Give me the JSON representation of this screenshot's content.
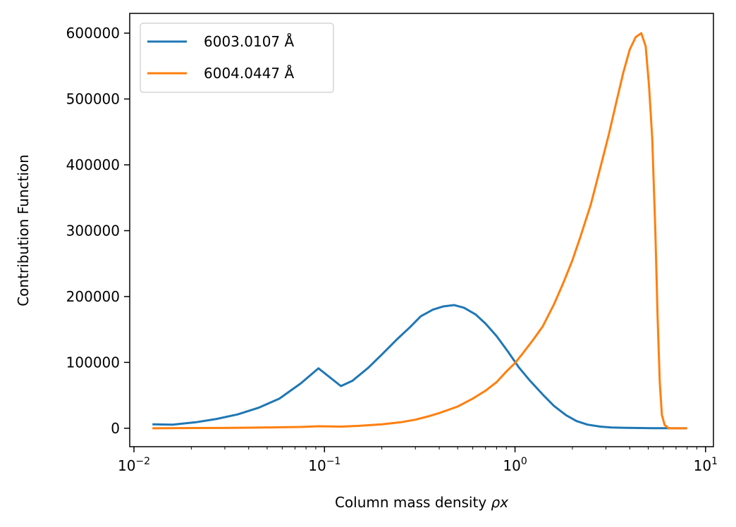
{
  "chart_data": {
    "type": "line",
    "xscale": "log",
    "xlim": [
      0.0095,
      11
    ],
    "ylim": [
      -28000,
      630000
    ],
    "xlabel": "Column mass density",
    "xlabel_symbol": "ρx",
    "ylabel": "Contribution Function",
    "grid": false,
    "legend_position": "upper-left",
    "x_ticks": [
      {
        "value": 0.01,
        "base": "10",
        "exp": "−2"
      },
      {
        "value": 0.1,
        "base": "10",
        "exp": "−1"
      },
      {
        "value": 1,
        "base": "10",
        "exp": "0"
      },
      {
        "value": 10,
        "base": "10",
        "exp": "1"
      }
    ],
    "y_ticks": [
      {
        "value": 0,
        "label": "0"
      },
      {
        "value": 100000,
        "label": "100000"
      },
      {
        "value": 200000,
        "label": "200000"
      },
      {
        "value": 300000,
        "label": "300000"
      },
      {
        "value": 400000,
        "label": "400000"
      },
      {
        "value": 500000,
        "label": "500000"
      },
      {
        "value": 600000,
        "label": "600000"
      }
    ],
    "series": [
      {
        "name": "6003.0107 Å",
        "color": "#1f77b4",
        "x": [
          0.0125,
          0.016,
          0.021,
          0.027,
          0.035,
          0.045,
          0.058,
          0.075,
          0.093,
          0.122,
          0.14,
          0.17,
          0.2,
          0.24,
          0.28,
          0.32,
          0.37,
          0.42,
          0.48,
          0.54,
          0.62,
          0.7,
          0.8,
          0.92,
          1.05,
          1.2,
          1.4,
          1.6,
          1.85,
          2.1,
          2.4,
          2.8,
          3.2,
          3.8,
          4.5,
          5.3,
          6.2,
          7.0,
          8.0
        ],
        "y": [
          6000,
          5500,
          9000,
          14000,
          21000,
          31000,
          45000,
          68000,
          91000,
          64000,
          72000,
          92000,
          112000,
          135000,
          153000,
          170000,
          180000,
          185000,
          187000,
          183000,
          173000,
          159000,
          140000,
          116000,
          92000,
          72000,
          51000,
          34000,
          20000,
          11000,
          5500,
          2500,
          1200,
          600,
          300,
          100,
          50,
          0,
          0
        ]
      },
      {
        "name": "6004.0447 Å",
        "color": "#ff7f0e",
        "x": [
          0.0125,
          0.02,
          0.03,
          0.045,
          0.06,
          0.075,
          0.093,
          0.122,
          0.15,
          0.2,
          0.25,
          0.3,
          0.35,
          0.4,
          0.5,
          0.6,
          0.7,
          0.8,
          0.9,
          1.0,
          1.1,
          1.25,
          1.4,
          1.6,
          1.8,
          2.0,
          2.2,
          2.5,
          2.8,
          3.1,
          3.4,
          3.7,
          4.0,
          4.3,
          4.6,
          4.85,
          5.05,
          5.25,
          5.45,
          5.6,
          5.75,
          5.9,
          6.1,
          6.4,
          7.0,
          8.0
        ],
        "y": [
          0,
          300,
          500,
          1000,
          1500,
          2000,
          3000,
          2500,
          3500,
          6000,
          9000,
          13000,
          18000,
          23000,
          33000,
          45000,
          57000,
          70000,
          86000,
          99000,
          114000,
          135000,
          155000,
          188000,
          222000,
          255000,
          290000,
          340000,
          395000,
          445000,
          495000,
          540000,
          575000,
          594000,
          600000,
          580000,
          520000,
          440000,
          300000,
          170000,
          70000,
          20000,
          5000,
          0,
          0,
          0
        ]
      }
    ]
  }
}
